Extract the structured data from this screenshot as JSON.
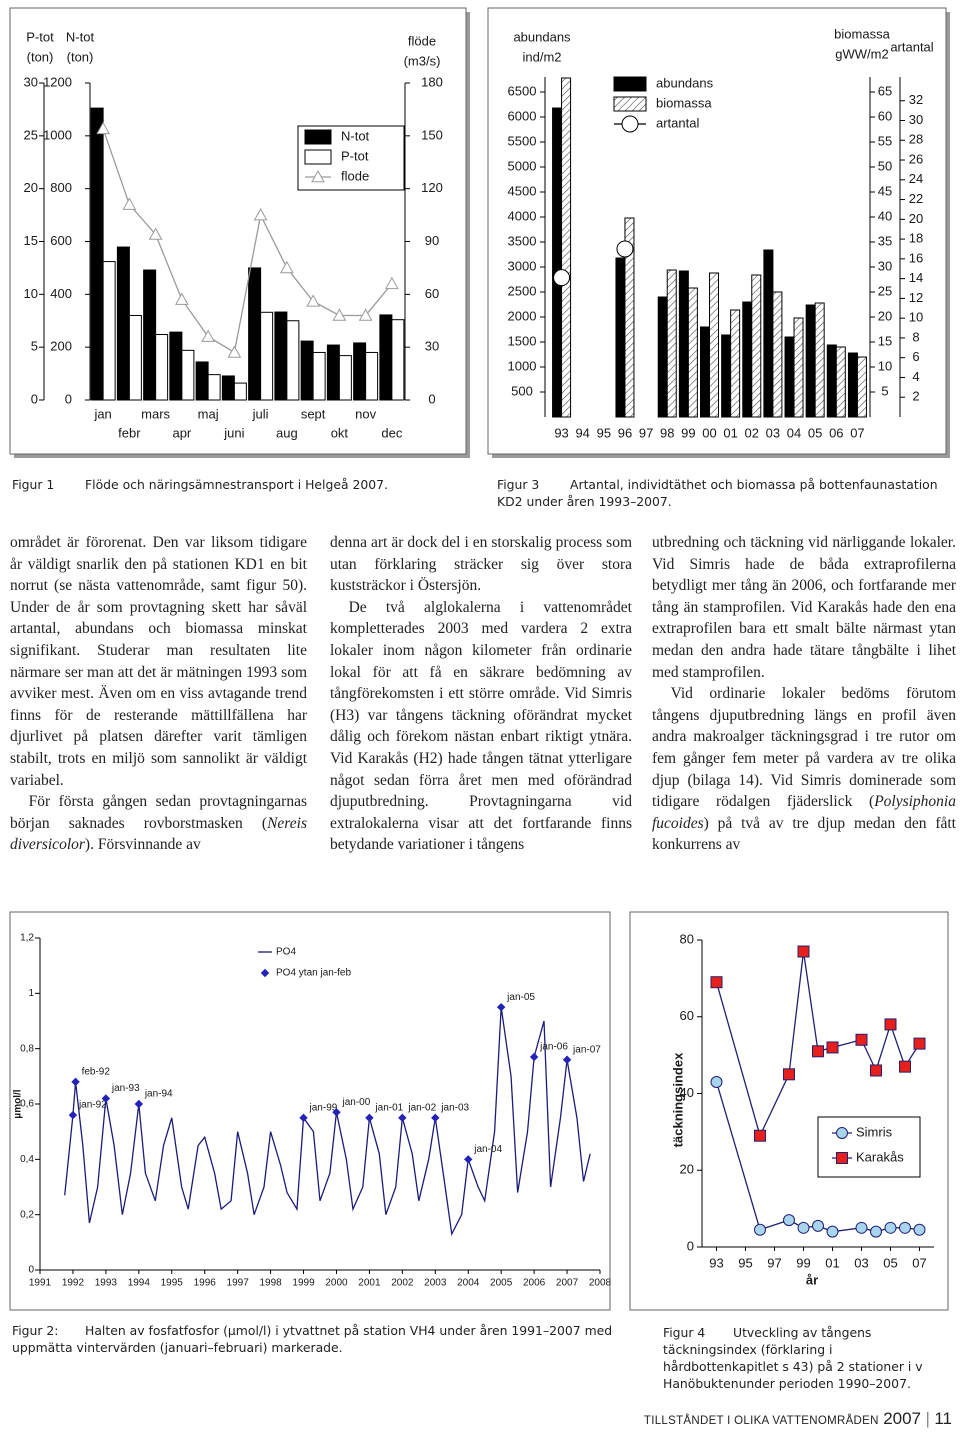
{
  "chart_data": [
    {
      "type": "bar",
      "caption_label": "Figur 1",
      "caption": "Flöde och näringsämnestransport i Helgeå 2007.",
      "categories": [
        "jan",
        "febr",
        "mars",
        "apr",
        "maj",
        "juni",
        "juli",
        "aug",
        "sept",
        "okt",
        "nov",
        "dec"
      ],
      "ylim": [
        0,
        30
      ],
      "yticks": [
        0,
        5,
        10,
        15,
        20,
        25,
        30
      ],
      "y_title": [
        "P-tot",
        "(ton)"
      ],
      "y2lim": [
        0,
        1200
      ],
      "y2ticks": [
        0,
        200,
        400,
        600,
        800,
        1000,
        1200
      ],
      "y2_title": [
        "N-tot",
        "(ton)"
      ],
      "y3lim": [
        0,
        180
      ],
      "y3ticks": [
        0,
        30,
        60,
        90,
        120,
        150,
        180
      ],
      "y3_title": [
        "flöde",
        "(m3/s)"
      ],
      "legend": "upper right",
      "series": [
        {
          "name": "N-tot",
          "style": "bar",
          "axis": "y2",
          "color": "#000000",
          "values": [
            1105,
            579,
            492,
            257,
            144,
            91,
            500,
            333,
            223,
            208,
            216,
            322
          ]
        },
        {
          "name": "P-tot",
          "style": "bar",
          "color": "#ffffff",
          "values": [
            13.1,
            8.0,
            6.2,
            4.7,
            2.4,
            1.6,
            8.3,
            7.5,
            4.5,
            4.2,
            4.5,
            7.6
          ]
        },
        {
          "name": "flode",
          "style": "line",
          "marker": "triangle",
          "axis": "y3",
          "color": "#9a9a9a",
          "marker_fill": "#ffffff",
          "values": [
            154,
            111,
            94,
            57,
            36,
            27,
            105,
            75,
            56,
            48,
            48,
            66
          ]
        }
      ]
    },
    {
      "type": "bar",
      "caption_label": "Figur 3",
      "caption": "Artantal, individtäthet och biomassa på bottenfaunastation KD2 under åren 1993–2007.",
      "categories": [
        "93",
        "94",
        "95",
        "96",
        "97",
        "98",
        "99",
        "00",
        "01",
        "02",
        "03",
        "04",
        "05",
        "06",
        "07"
      ],
      "ylim": [
        0,
        6800
      ],
      "yticks": [
        500,
        1000,
        1500,
        2000,
        2500,
        3000,
        3500,
        4000,
        4500,
        5000,
        5500,
        6000,
        6500
      ],
      "y_title": [
        "abundans",
        "ind/m2"
      ],
      "y2lim": [
        0,
        68
      ],
      "y2ticks": [
        5,
        10,
        15,
        20,
        25,
        30,
        35,
        40,
        45,
        50,
        55,
        60,
        65
      ],
      "y2_title": [
        "biomassa",
        "gWW/m2"
      ],
      "y3lim": [
        0,
        34.4
      ],
      "y3ticks": [
        2,
        4,
        6,
        8,
        10,
        12,
        14,
        16,
        18,
        20,
        22,
        24,
        26,
        28,
        30,
        32
      ],
      "y3_title": [
        "artantal"
      ],
      "legend": "upper center",
      "series": [
        {
          "name": "abundans",
          "style": "bar",
          "color": "#000000",
          "values": [
            6180,
            null,
            null,
            3180,
            null,
            2400,
            2920,
            1800,
            1640,
            2300,
            3340,
            1600,
            2240,
            1440,
            1280
          ]
        },
        {
          "name": "biomassa",
          "style": "bar",
          "axis": "y2",
          "color": "#ffffff",
          "pattern": "hatch",
          "values": [
            67.8,
            null,
            null,
            39.8,
            null,
            29.4,
            25.8,
            28.8,
            21.4,
            28.4,
            25,
            19.8,
            22.8,
            14,
            12
          ]
        },
        {
          "name": "artantal",
          "style": "line",
          "marker": "circle",
          "axis": "y3",
          "color": "#000000",
          "marker_fill": "#ffffff",
          "values": [
            14.1,
            null,
            null,
            17,
            null,
            null,
            null,
            null,
            null,
            null,
            null,
            null,
            null,
            null,
            null
          ]
        }
      ]
    },
    {
      "type": "line",
      "caption_label": "Figur 2:",
      "caption": "Halten av fosfatfosfor (µmol/l) i ytvattnet på station VH4 under åren 1991–2007 med uppmätta vintervärden (januari–februari) markerade.",
      "xlim": [
        1991,
        2008
      ],
      "xticks": [
        1991,
        1992,
        1993,
        1994,
        1995,
        1996,
        1997,
        1998,
        1999,
        2000,
        2001,
        2002,
        2003,
        2004,
        2005,
        2006,
        2007,
        2008
      ],
      "ylim": [
        0,
        1.2
      ],
      "yticks": [
        0,
        {
          "value": 0.2,
          "label": "0,2"
        },
        {
          "value": 0.4,
          "label": "0,4"
        },
        {
          "value": 0.6,
          "label": "0,6"
        },
        {
          "value": 0.8,
          "label": "0,8"
        },
        1,
        {
          "value": 1.2,
          "label": "1,2"
        }
      ],
      "ylabel": "µmol/l",
      "legend": "upper center",
      "series": [
        {
          "name": "PO4",
          "style": "line",
          "color": "#1b1b7a",
          "x": [
            1991.75,
            1992.0,
            1992.08,
            1992.3,
            1992.5,
            1992.75,
            1993.0,
            1993.25,
            1993.5,
            1993.75,
            1994.0,
            1994.2,
            1994.5,
            1994.75,
            1995.0,
            1995.3,
            1995.5,
            1995.8,
            1996.0,
            1996.3,
            1996.5,
            1996.8,
            1997.0,
            1997.3,
            1997.5,
            1997.8,
            1998.0,
            1998.3,
            1998.5,
            1998.8,
            1999.0,
            1999.3,
            1999.5,
            1999.8,
            2000.0,
            2000.3,
            2000.5,
            2000.8,
            2001.0,
            2001.3,
            2001.5,
            2001.8,
            2002.0,
            2002.3,
            2002.5,
            2002.8,
            2003.0,
            2003.3,
            2003.5,
            2003.8,
            2004.0,
            2004.3,
            2004.5,
            2004.8,
            2005.0,
            2005.3,
            2005.5,
            2005.8,
            2006.0,
            2006.3,
            2006.5,
            2006.8,
            2007.0,
            2007.3,
            2007.5,
            2007.7
          ],
          "values": [
            0.27,
            0.56,
            0.68,
            0.45,
            0.17,
            0.3,
            0.62,
            0.45,
            0.2,
            0.35,
            0.6,
            0.35,
            0.25,
            0.45,
            0.55,
            0.3,
            0.22,
            0.45,
            0.48,
            0.35,
            0.22,
            0.25,
            0.5,
            0.35,
            0.2,
            0.3,
            0.5,
            0.38,
            0.28,
            0.22,
            0.55,
            0.5,
            0.25,
            0.35,
            0.57,
            0.4,
            0.22,
            0.3,
            0.55,
            0.42,
            0.2,
            0.3,
            0.55,
            0.42,
            0.25,
            0.4,
            0.55,
            0.3,
            0.13,
            0.2,
            0.4,
            0.3,
            0.25,
            0.5,
            0.95,
            0.7,
            0.28,
            0.5,
            0.77,
            0.9,
            0.3,
            0.55,
            0.76,
            0.55,
            0.32,
            0.42
          ]
        },
        {
          "name": "PO4 ytan jan-feb",
          "style": "points",
          "marker": "diamond",
          "color": "#2323b8",
          "marker_fill": "#2323b8",
          "x": [
            1992.0,
            1992.08,
            1993.0,
            1994.0,
            1999.0,
            2000.0,
            2001.0,
            2002.0,
            2003.0,
            2004.0,
            2005.0,
            2006.0,
            2007.0
          ],
          "values": [
            0.56,
            0.68,
            0.62,
            0.6,
            0.55,
            0.57,
            0.55,
            0.55,
            0.55,
            0.4,
            0.95,
            0.77,
            0.76
          ],
          "point_labels": [
            "jan-92",
            "feb-92",
            "jan-93",
            "jan-94",
            "jan-99",
            "jan-00",
            "jan-01",
            "jan-02",
            "jan-03",
            "jan-04",
            "jan-05",
            "jan-06",
            "jan-07"
          ]
        }
      ]
    },
    {
      "type": "line",
      "caption_label": "Figur 4",
      "caption": "Utveckling av tångens täckningsindex (förklaring i hårdbottenkapitlet s 43) på 2 stationer i v Hanöbuktenunder perioden 1990–2007.",
      "xlim": [
        1992,
        2008
      ],
      "xticks": [
        {
          "value": 1993,
          "label": "93"
        },
        {
          "value": 1995,
          "label": "95"
        },
        {
          "value": 1997,
          "label": "97"
        },
        {
          "value": 1999,
          "label": "99"
        },
        {
          "value": 2001,
          "label": "01"
        },
        {
          "value": 2003,
          "label": "03"
        },
        {
          "value": 2005,
          "label": "05"
        },
        {
          "value": 2007,
          "label": "07"
        }
      ],
      "ylim": [
        0,
        80
      ],
      "yticks": [
        0,
        20,
        40,
        60,
        80
      ],
      "xlabel": "år",
      "ylabel": "täckningsindex",
      "legend": "lower right",
      "series": [
        {
          "name": "Simris",
          "style": "line",
          "marker": "circle",
          "color": "#202070",
          "marker_fill": "#a8d4ee",
          "x": [
            1993,
            1996,
            1998,
            1999,
            2000,
            2001,
            2003,
            2004,
            2005,
            2006,
            2007
          ],
          "values": [
            43,
            4.5,
            7,
            5,
            5.5,
            4,
            5,
            4,
            5,
            5,
            4.5
          ]
        },
        {
          "name": "Karakås",
          "style": "line",
          "marker": "square",
          "color": "#202070",
          "marker_fill": "#e8201c",
          "x": [
            1993,
            1996,
            1998,
            1999,
            2000,
            2001,
            2003,
            2004,
            2005,
            2006,
            2007
          ],
          "values": [
            69,
            29,
            45,
            77,
            51,
            52,
            54,
            46,
            58,
            47,
            53
          ]
        }
      ]
    }
  ],
  "body": {
    "columns": [
      [
        [
          "området är förorenat. Den var liksom tidigare år väldigt snarlik den på stationen KD1 en bit norrut (se nästa vattenområde, samt figur 50). Under de år som provtagning skett har såväl artantal, abundans och biomassa minskat signifikant. Studerar man resultaten lite närmare ser man att det är mätningen 1993 som avviker mest. Även om en viss avtagande trend finns för de resterande mättillfällena har djurlivet på platsen därefter varit tämligen stabilt, trots en miljö som sannolikt är väldigt variabel."
        ],
        [
          "För första gången sedan provtagningarnas början saknades rovborstmasken (",
          {
            "text": "Nereis diversicolor",
            "italic": true
          },
          "). Försvinnande av"
        ]
      ],
      [
        [
          "denna art är dock del i en storskalig process som utan förklaring sträcker sig över stora kuststräckor i Östersjön."
        ],
        [
          "De två alglokalerna i vattenområdet kompletterades 2003 med vardera 2 extra lokaler inom någon kilometer från ordinarie lokal för att få en säkrare bedömning av tångförekomsten i ett större område. Vid Simris (H3) var tångens täckning oförändrat mycket dålig och förekom nästan enbart riktigt ytnära. Vid Karakås (H2) hade tången tätnat ytterligare något sedan förra året men med oförändrad djuputbredning. Provtagningarna vid extralokalerna visar att det fortfarande finns betydande variationer i tångens"
        ]
      ],
      [
        [
          "utbredning och täckning vid närliggande lokaler. Vid Simris hade de båda extraprofilerna betydligt mer tång än 2006, och fortfarande mer tång än stamprofilen. Vid Karakås hade den ena extraprofilen bara ett smalt bälte närmast ytan medan den andra hade tätare tångbälte i lihet med stamprofilen."
        ],
        [
          "Vid ordinarie lokaler bedöms förutom tångens djuputbredning längs en profil även andra makroalger täckningsgrad i tre rutor om fem gånger fem meter på vardera av tre olika djup (bilaga 14). Vid Simris dominerade som tidigare rödalgen fjäderslick (",
          {
            "text": "Polysiphonia fucoides",
            "italic": true
          },
          ") på två av tre djup medan den fått konkurrens av"
        ]
      ]
    ]
  },
  "footer": {
    "section": "TILLSTÅNDET I OLIKA VATTENOMRÅDEN",
    "year": "2007",
    "page": "11"
  }
}
